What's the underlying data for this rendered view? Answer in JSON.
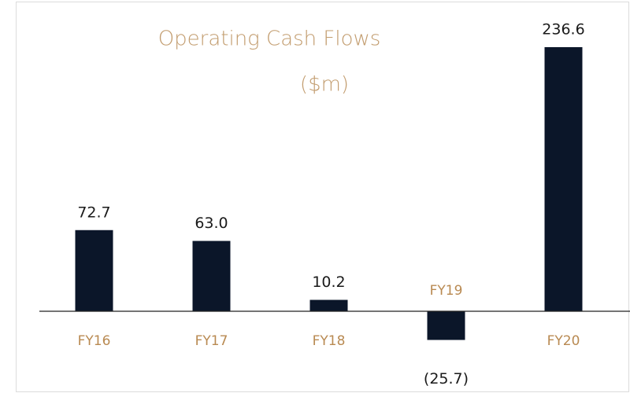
{
  "chart_data": {
    "type": "bar",
    "title": "Operating Cash Flows",
    "subtitle": "($m)",
    "categories": [
      "FY16",
      "FY17",
      "FY18",
      "FY19",
      "FY20"
    ],
    "values": [
      72.7,
      63.0,
      10.2,
      -25.7,
      236.6
    ],
    "value_labels": [
      "72.7",
      "63.0",
      "10.2",
      "(25.7)",
      "236.6"
    ],
    "color": "#0b1629"
  }
}
